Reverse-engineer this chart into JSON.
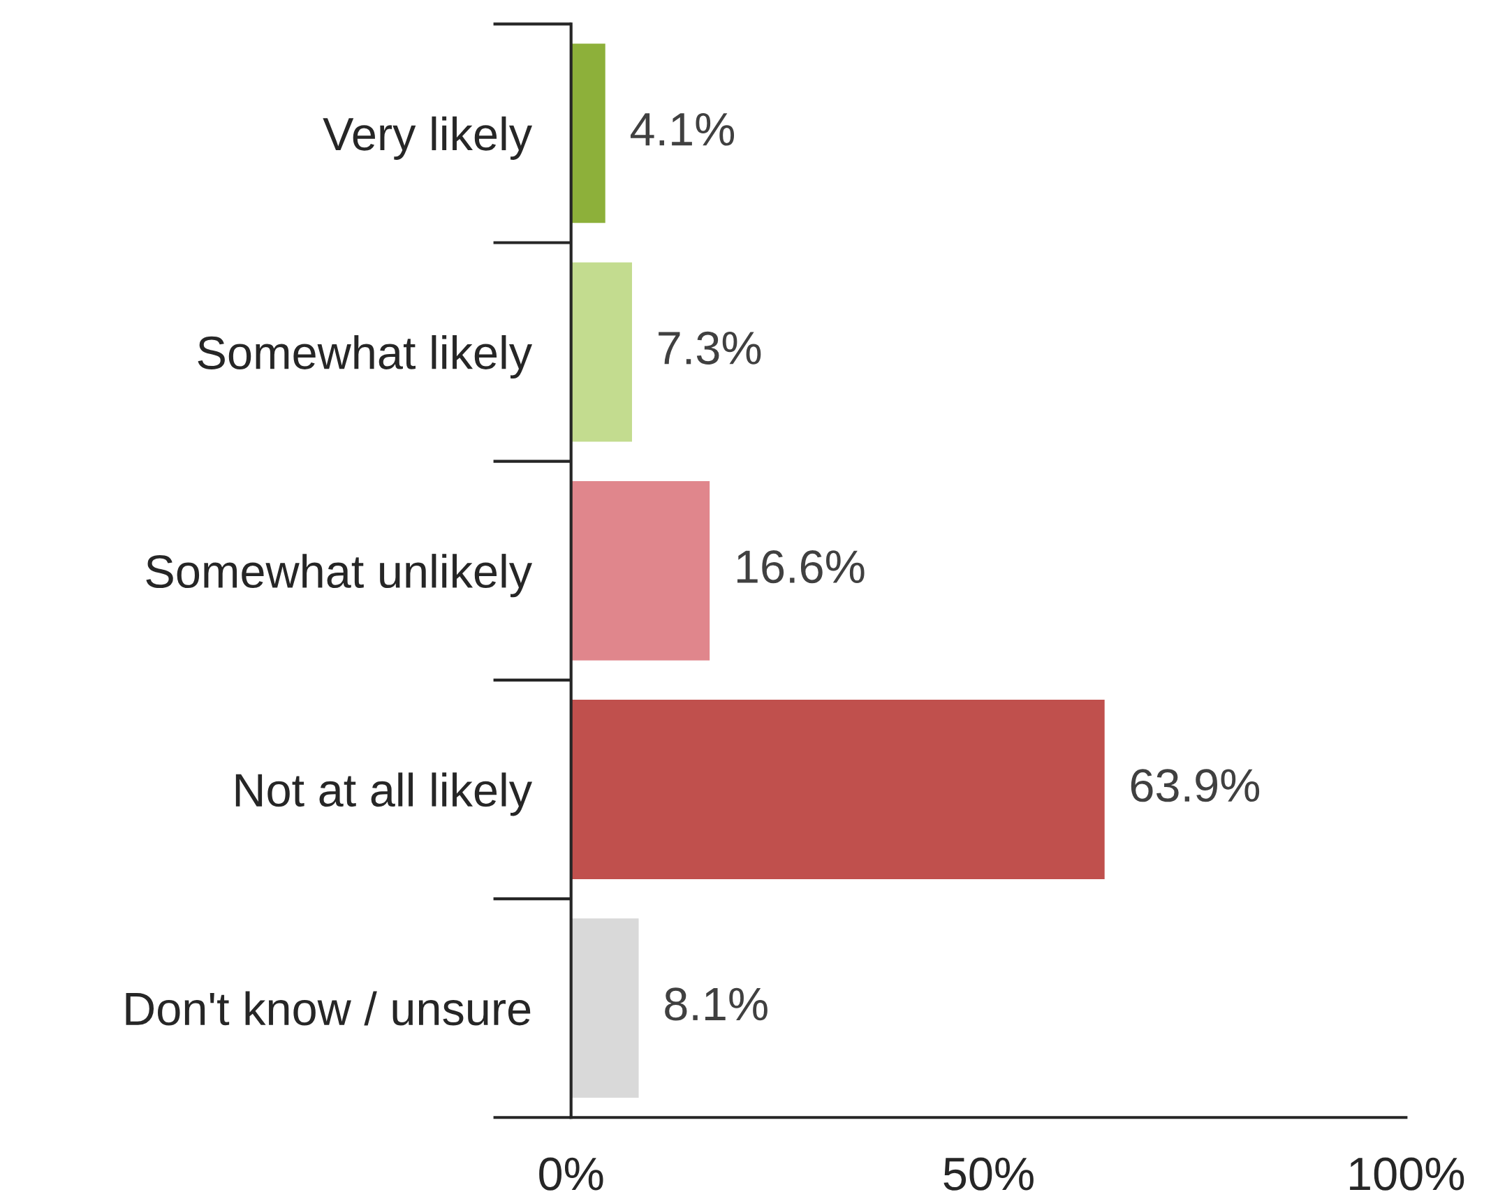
{
  "chart_data": {
    "type": "bar",
    "orientation": "horizontal",
    "categories": [
      "Very likely",
      "Somewhat likely",
      "Somewhat unlikely",
      "Not at all likely",
      "Don't know / unsure"
    ],
    "values": [
      4.1,
      7.3,
      16.6,
      63.9,
      8.1
    ],
    "value_labels": [
      "4.1%",
      "7.3%",
      "16.6%",
      "63.9%",
      "8.1%"
    ],
    "colors": [
      "#8db03a",
      "#c3dc8f",
      "#e0868c",
      "#c0504d",
      "#d9d9d9"
    ],
    "xlim": [
      0,
      100
    ],
    "xticks": [
      {
        "value": 0,
        "label": "0%"
      },
      {
        "value": 50,
        "label": "50%"
      },
      {
        "value": 100,
        "label": "100%"
      }
    ],
    "grid": false
  }
}
